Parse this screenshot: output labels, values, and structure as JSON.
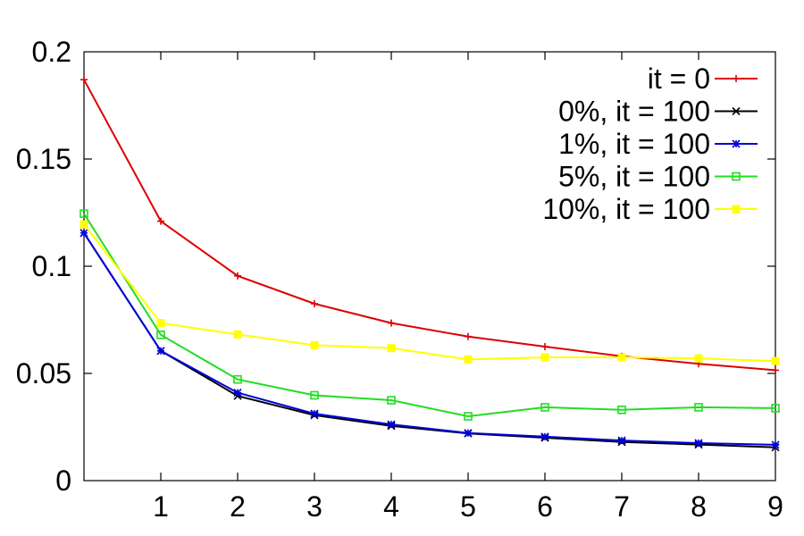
{
  "chart_data": {
    "type": "line",
    "title": "",
    "xlabel": "",
    "ylabel": "",
    "xlim": [
      0,
      9
    ],
    "ylim": [
      0,
      0.2
    ],
    "x_ticks": [
      1,
      2,
      3,
      4,
      5,
      6,
      7,
      8,
      9
    ],
    "y_ticks": [
      0,
      0.05,
      0.1,
      0.15,
      0.2
    ],
    "x_tick_labels": [
      "1",
      "2",
      "3",
      "4",
      "5",
      "6",
      "7",
      "8",
      "9"
    ],
    "y_tick_labels": [
      "0",
      "0.05",
      "0.1",
      "0.15",
      "0.2"
    ],
    "grid": false,
    "legend_position": "top-right",
    "x": [
      0,
      1,
      2,
      3,
      4,
      5,
      6,
      7,
      8,
      9
    ],
    "series": [
      {
        "name": "it = 0",
        "color": "#dd0000",
        "marker": "plus",
        "values": [
          0.187,
          0.121,
          0.0955,
          0.0825,
          0.0735,
          0.0672,
          0.0625,
          0.058,
          0.0545,
          0.0515
        ]
      },
      {
        "name": "0%, it = 100",
        "color": "#000000",
        "marker": "cross",
        "values": [
          0.1155,
          0.0605,
          0.0395,
          0.0305,
          0.0255,
          0.022,
          0.02,
          0.018,
          0.0168,
          0.0155
        ]
      },
      {
        "name": "1%, it = 100",
        "color": "#0000dd",
        "marker": "star",
        "values": [
          0.1155,
          0.0605,
          0.041,
          0.0312,
          0.0262,
          0.0222,
          0.0205,
          0.0187,
          0.0175,
          0.0167
        ]
      },
      {
        "name": "5%, it = 100",
        "color": "#22dd22",
        "marker": "open-square",
        "values": [
          0.1245,
          0.068,
          0.0472,
          0.0398,
          0.0375,
          0.03,
          0.0342,
          0.033,
          0.0342,
          0.0338
        ]
      },
      {
        "name": "10%, it = 100",
        "color": "#ffff00",
        "marker": "filled-square",
        "values": [
          0.1195,
          0.0735,
          0.0682,
          0.0632,
          0.0618,
          0.0565,
          0.0575,
          0.0575,
          0.057,
          0.0558
        ]
      }
    ]
  }
}
